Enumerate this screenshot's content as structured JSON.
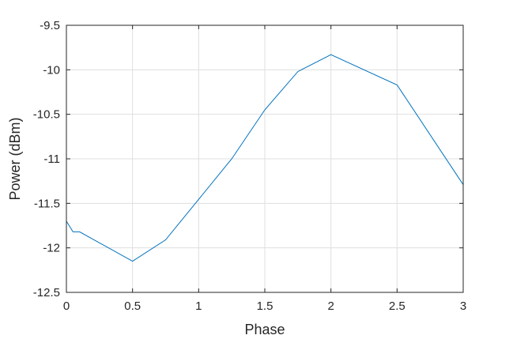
{
  "chart_data": {
    "type": "line",
    "title": "",
    "xlabel": "Phase",
    "ylabel": "Power (dBm)",
    "xlim": [
      0,
      3
    ],
    "ylim": [
      -12.5,
      -9.5
    ],
    "xticks": [
      0,
      0.5,
      1,
      1.5,
      2,
      2.5,
      3
    ],
    "xtick_labels": [
      "0",
      "0.5",
      "1",
      "1.5",
      "2",
      "2.5",
      "3"
    ],
    "yticks": [
      -12.5,
      -12,
      -11.5,
      -11,
      -10.5,
      -10,
      -9.5
    ],
    "ytick_labels": [
      "-12.5",
      "-12",
      "-11.5",
      "-11",
      "-10.5",
      "-10",
      "-9.5"
    ],
    "grid": true,
    "series": [
      {
        "color": "#0072bd",
        "x": [
          0,
          0.05,
          0.1,
          0.5,
          0.75,
          1.25,
          1.5,
          1.75,
          2,
          2.5,
          3
        ],
        "y": [
          -11.7,
          -11.82,
          -11.82,
          -12.15,
          -11.91,
          -11.0,
          -10.45,
          -10.02,
          -9.83,
          -10.17,
          -11.29
        ]
      }
    ]
  }
}
